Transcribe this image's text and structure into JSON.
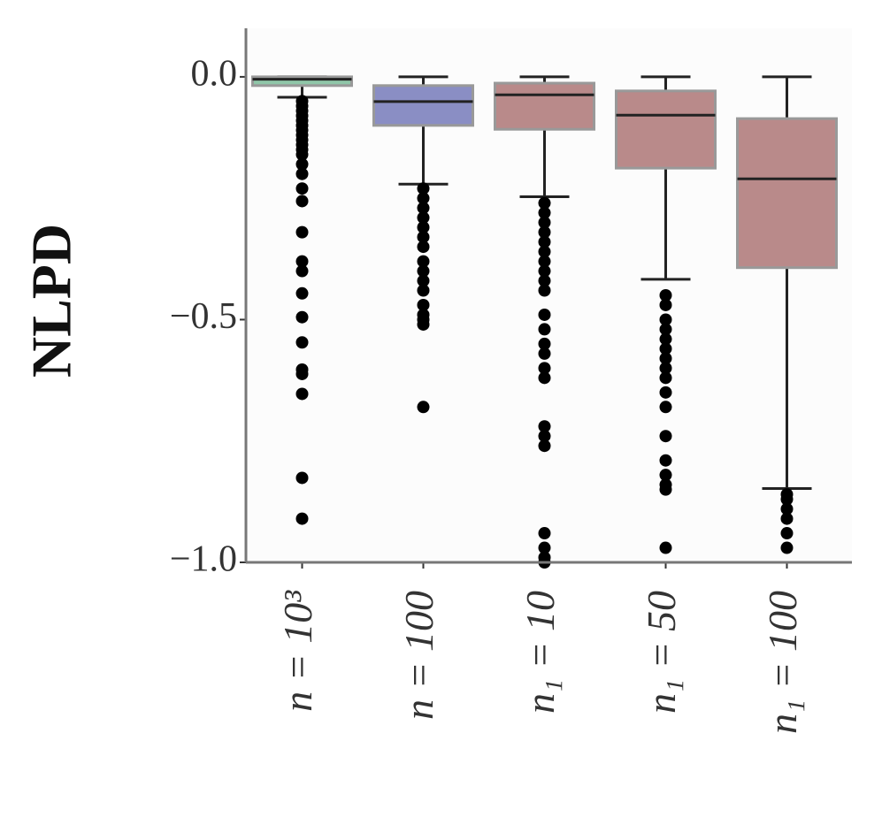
{
  "chart_data": {
    "type": "box",
    "y_label": "NLPD",
    "categories": [
      "n = 10³",
      "n = 100",
      "n₁ = 10",
      "n₁ = 50",
      "n₁ = 100"
    ],
    "colors": [
      "#8fc6a8",
      "#8a8ec4",
      "#b98a8a",
      "#b98a8a",
      "#b98a8a"
    ],
    "whisker_high": [
      0,
      0,
      0,
      0,
      0
    ],
    "q3": [
      0,
      -0.018,
      -0.013,
      -0.029,
      -0.086
    ],
    "median": [
      -0.005,
      -0.051,
      -0.037,
      -0.079,
      -0.21
    ],
    "q1": [
      -0.018,
      -0.1,
      -0.108,
      -0.188,
      -0.393
    ],
    "whisker_low": [
      -0.042,
      -0.221,
      -0.247,
      -0.417,
      -0.848
    ],
    "outliers": [
      [
        -0.05,
        -0.06,
        -0.07,
        -0.08,
        -0.09,
        -0.1,
        -0.11,
        -0.12,
        -0.13,
        -0.14,
        -0.15,
        -0.16,
        -0.18,
        -0.2,
        -0.23,
        -0.256,
        -0.32,
        -0.38,
        -0.4,
        -0.446,
        -0.495,
        -0.547,
        -0.603,
        -0.612,
        -0.653,
        -0.826,
        -0.91
      ],
      [
        -0.23,
        -0.25,
        -0.27,
        -0.29,
        -0.31,
        -0.33,
        -0.35,
        -0.38,
        -0.4,
        -0.42,
        -0.44,
        -0.47,
        -0.49,
        -0.5,
        -0.51,
        -0.68
      ],
      [
        -0.26,
        -0.28,
        -0.3,
        -0.32,
        -0.34,
        -0.36,
        -0.38,
        -0.4,
        -0.42,
        -0.44,
        -0.49,
        -0.52,
        -0.55,
        -0.57,
        -0.6,
        -0.62,
        -0.72,
        -0.74,
        -0.76,
        -0.94,
        -0.97,
        -0.99,
        -1.0
      ],
      [
        -0.45,
        -0.47,
        -0.5,
        -0.52,
        -0.54,
        -0.56,
        -0.58,
        -0.6,
        -0.62,
        -0.65,
        -0.68,
        -0.74,
        -0.79,
        -0.82,
        -0.84,
        -0.85,
        -0.97
      ],
      [
        -0.86,
        -0.87,
        -0.89,
        -0.91,
        -0.94,
        -0.97
      ]
    ],
    "ylim": [
      -1.0,
      0.1
    ],
    "yticks": [
      {
        "value": -1.0,
        "label": "−1.0"
      },
      {
        "value": -0.5,
        "label": "−0.5"
      },
      {
        "value": 0,
        "label": "0.0"
      }
    ]
  }
}
